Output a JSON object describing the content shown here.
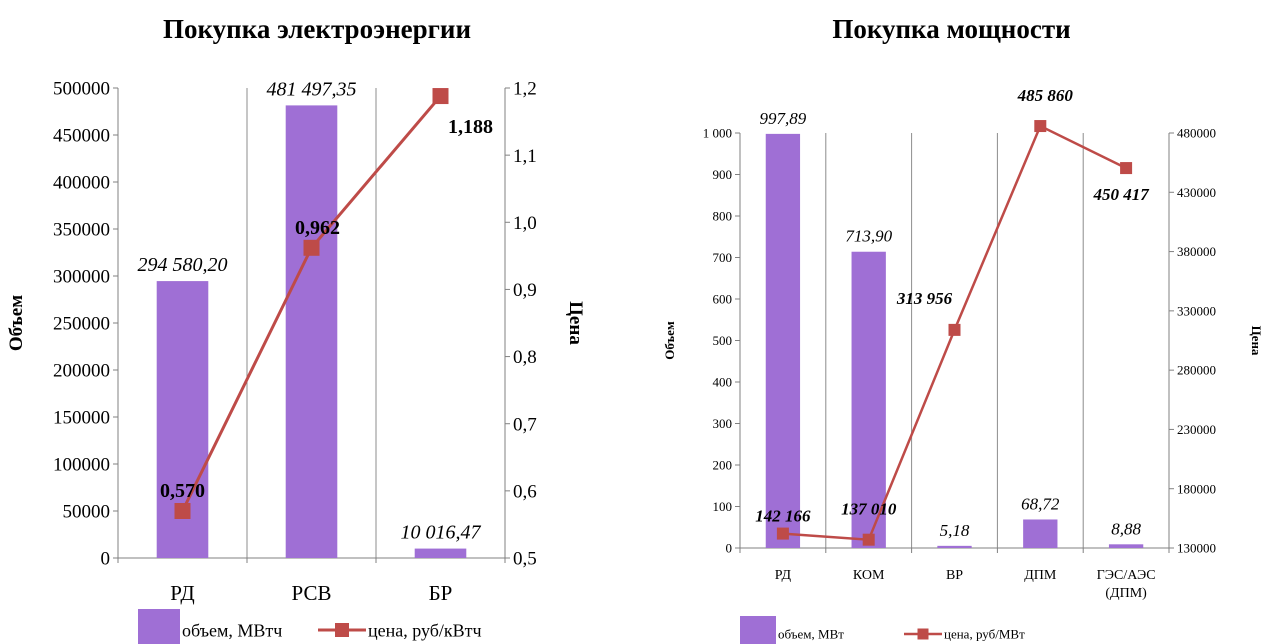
{
  "colors": {
    "bar": "#9f6fd5",
    "line": "#be4b48",
    "grid": "#8c8c8c",
    "axis": "#808080"
  },
  "chart_data": [
    {
      "type": "bar",
      "title": "Покупка электроэнергии",
      "categories": [
        "РД",
        "РСВ",
        "БР"
      ],
      "series": [
        {
          "name": "объем, МВтч",
          "type": "bar",
          "axis": "left",
          "values": [
            294580.2,
            481497.35,
            10016.47
          ],
          "labels": [
            "294 580,20",
            "481 497,35",
            "10 016,47"
          ]
        },
        {
          "name": "цена, руб/кВтч",
          "type": "line",
          "axis": "right",
          "values": [
            0.57,
            0.962,
            1.188
          ],
          "labels": [
            "0,570",
            "0,962",
            "1,188"
          ]
        }
      ],
      "ylabel": "Объем",
      "y2label": "Цена",
      "ylim": [
        0,
        500000
      ],
      "y2lim": [
        0.5,
        1.2
      ],
      "yticks": [
        "0",
        "50000",
        "100000",
        "150000",
        "200000",
        "250000",
        "300000",
        "350000",
        "400000",
        "450000",
        "500000"
      ],
      "y2ticks": [
        "0,5",
        "0,6",
        "0,7",
        "0,8",
        "0,9",
        "1,0",
        "1,1",
        "1,2"
      ],
      "grid": "vertical",
      "legend": "bottom"
    },
    {
      "type": "bar",
      "title": "Покупка мощности",
      "categories": [
        "РД",
        "КОМ",
        "ВР",
        "ДПМ",
        "ГЭС/АЭС (ДПМ)"
      ],
      "category_lines": [
        [
          "РД"
        ],
        [
          "КОМ"
        ],
        [
          "ВР"
        ],
        [
          "ДПМ"
        ],
        [
          "ГЭС/АЭС",
          "(ДПМ)"
        ]
      ],
      "series": [
        {
          "name": "объем, МВт",
          "type": "bar",
          "axis": "left",
          "values": [
            997.89,
            713.9,
            5.18,
            68.72,
            8.88
          ],
          "labels": [
            "997,89",
            "713,90",
            "5,18",
            "68,72",
            "8,88"
          ]
        },
        {
          "name": "цена, руб/МВт",
          "type": "line",
          "axis": "right",
          "values": [
            142166,
            137010,
            313956,
            485860,
            450417
          ],
          "labels": [
            "142 166",
            "137 010",
            "313 956",
            "485 860",
            "450 417"
          ]
        }
      ],
      "ylabel": "Объем",
      "y2label": "Цена",
      "ylim": [
        0,
        1000
      ],
      "y2lim": [
        130000,
        480000
      ],
      "yticks": [
        "0",
        "100",
        "200",
        "300",
        "400",
        "500",
        "600",
        "700",
        "800",
        "900",
        "1 000"
      ],
      "y2ticks": [
        "130000",
        "180000",
        "230000",
        "280000",
        "330000",
        "380000",
        "430000",
        "480000"
      ],
      "grid": "vertical",
      "legend": "bottom"
    }
  ]
}
